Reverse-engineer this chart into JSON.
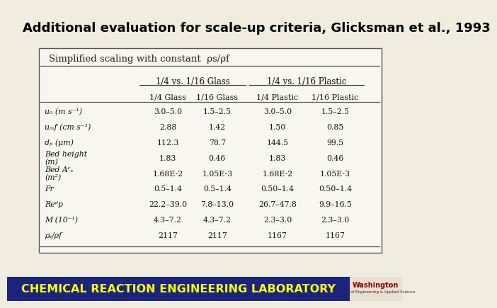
{
  "title": "Additional evaluation for scale-up criteria, Glicksman et al., 1993",
  "col_headers_top": [
    "1/4 vs. 1/16 Glass",
    "1/4 vs. 1/16 Plastic"
  ],
  "col_headers_sub": [
    "1/4 Glass",
    "1/16 Glass",
    "1/4 Plastic",
    "1/16 Plastic"
  ],
  "row_labels": [
    "u₀ (m s⁻¹)",
    "uₘf (cm s⁻¹)",
    "dₚ (μm)",
    "Bed height\n(m)",
    "Bed Aᶜₛ\n(m²)",
    "Fr",
    "Reᵈp",
    "M (10⁻¹)",
    "ρₛ/ρf"
  ],
  "data": [
    [
      "3.0–5.0",
      "1.5–2.5",
      "3.0–5.0",
      "1.5–2.5"
    ],
    [
      "2.88",
      "1.42",
      "1.50",
      "0.85"
    ],
    [
      "112.3",
      "78.7",
      "144.5",
      "99.5"
    ],
    [
      "1.83",
      "0.46",
      "1.83",
      "0.46"
    ],
    [
      "1.68E-2",
      "1.05E-3",
      "1.68E-2",
      "1.05E-3"
    ],
    [
      "0.5–1.4",
      "0.5–1.4",
      "0.50–1.4",
      "0.50–1.4"
    ],
    [
      "22.2–39.0",
      "7.8–13.0",
      "26.7–47.8",
      "9.9–16.5"
    ],
    [
      "4.3–7.2",
      "4.3–7.2",
      "2.3–3.0",
      "2.3–3.0"
    ],
    [
      "2117",
      "2117",
      "1167",
      "1167"
    ]
  ],
  "bg_color": "#f0ede0",
  "table_bg": "#f8f6f0",
  "footer_bg": "#1a237e",
  "footer_text": "CHEMICAL REACTION ENGINEERING LABORATORY",
  "footer_text_color": "#ffff00",
  "title_color": "#000000",
  "border_color": "#555555",
  "logo_bg": "#e8e0d0"
}
